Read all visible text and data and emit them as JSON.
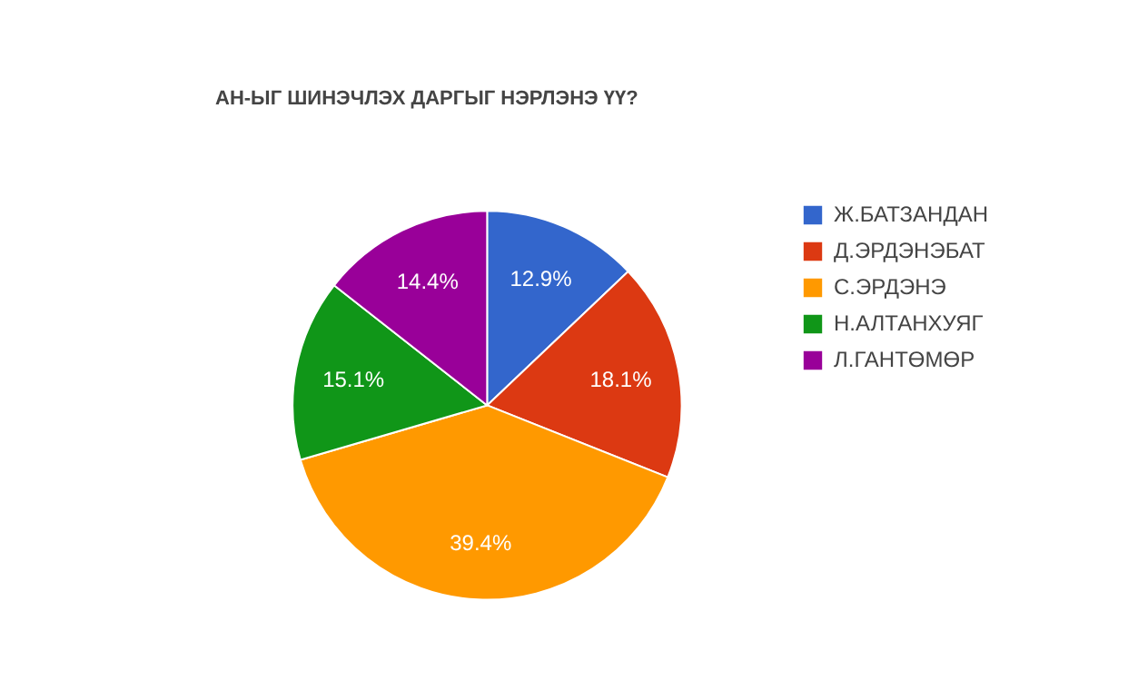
{
  "chart_data": {
    "type": "pie",
    "title": "АН-ЫГ ШИНЭЧЛЭХ ДАРГЫГ НЭРЛЭНЭ ҮҮ?",
    "categories": [
      "Ж.БАТЗАНДАН",
      "Д.ЭРДЭНЭБАТ",
      "С.ЭРДЭНЭ",
      "Н.АЛТАНХУЯГ",
      "Л.ГАНТӨМӨР"
    ],
    "values": [
      12.9,
      18.1,
      39.4,
      15.1,
      14.4
    ],
    "colors": [
      "#3366cc",
      "#dc3912",
      "#ff9900",
      "#109618",
      "#990099"
    ],
    "value_labels": [
      "12.9%",
      "18.1%",
      "39.4%",
      "15.1%",
      "14.4%"
    ],
    "legend": "right"
  }
}
